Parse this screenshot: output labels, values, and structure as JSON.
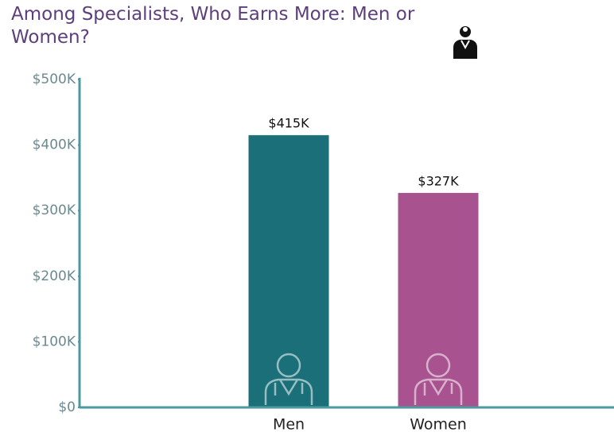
{
  "chart_data": {
    "type": "bar",
    "title": "Among Specialists, Who Earns More: Men or Women?",
    "categories": [
      "Men",
      "Women"
    ],
    "values": [
      415000,
      327000
    ],
    "value_labels": [
      "$415K",
      "$327K"
    ],
    "colors": [
      "#1a6f78",
      "#a8528f"
    ],
    "ylim": [
      0,
      500000
    ],
    "yticks": [
      {
        "value": 0,
        "label": "$0"
      },
      {
        "value": 100000,
        "label": "$100K"
      },
      {
        "value": 200000,
        "label": "$200K"
      },
      {
        "value": 300000,
        "label": "$300K"
      },
      {
        "value": 400000,
        "label": "$400K"
      },
      {
        "value": 500000,
        "label": "$500K"
      }
    ]
  }
}
